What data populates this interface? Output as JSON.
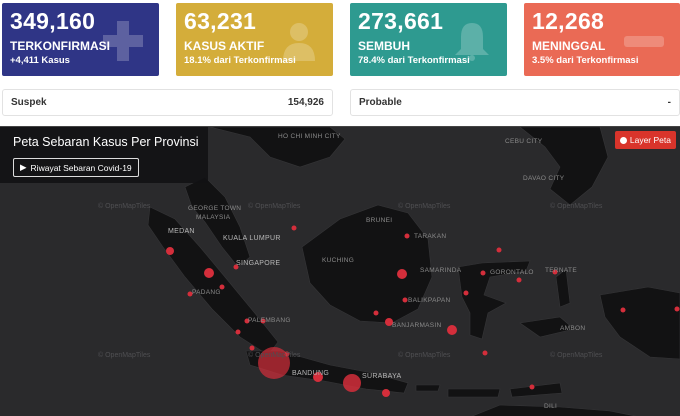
{
  "cards": {
    "confirmed": {
      "number": "349,160",
      "label": "TERKONFIRMASI",
      "sub": "+4,411 Kasus",
      "color": "#2f3586",
      "icon": "plus-icon"
    },
    "active": {
      "number": "63,231",
      "label": "KASUS AKTIF",
      "sub": "18.1% dari Terkonfirmasi",
      "color": "#d4ad3a",
      "icon": "patient-icon"
    },
    "recovered": {
      "number": "273,661",
      "label": "SEMBUH",
      "sub": "78.4% dari Terkonfirmasi",
      "color": "#2e9a90",
      "icon": "bell-icon"
    },
    "deaths": {
      "number": "12,268",
      "label": "MENINGGAL",
      "sub": "3.5% dari Terkonfirmasi",
      "color": "#ea6a55",
      "icon": "minus-icon"
    }
  },
  "stats": {
    "suspek": {
      "label": "Suspek",
      "value": "154,926"
    },
    "probable": {
      "label": "Probable",
      "value": "-"
    }
  },
  "map": {
    "title": "Peta Sebaran Kasus Per Provinsi",
    "history_button": "Riwayat Sebaran Covid-19",
    "layer_button": "Layer Peta",
    "tile_credit": "© OpenMapTiles",
    "labels": {
      "ho_chi_minh": "HO CHI MINH CITY",
      "cebu": "CEBU CITY",
      "davao": "DAVAO CITY",
      "george_town": "GEORGE TOWN",
      "malaysia": "MALAYSIA",
      "medan": "MEDAN",
      "kuala_lumpur": "KUALA LUMPUR",
      "singapore": "SINGAPORE",
      "padang": "PADANG",
      "palembang": "PALEMBANG",
      "bandung": "BANDUNG",
      "surabaya": "SURABAYA",
      "brunei": "BRUNEI",
      "kuching": "KUCHING",
      "samarinda": "SAMARINDA",
      "tarakan": "TARAKAN",
      "gorontalo": "GORONTALO",
      "ternate": "TERNATE",
      "balikpapan": "BALIKPAPAN",
      "banjarmasin": "BANJARMASIN",
      "ambon": "AMBON",
      "dili": "DILI"
    }
  }
}
